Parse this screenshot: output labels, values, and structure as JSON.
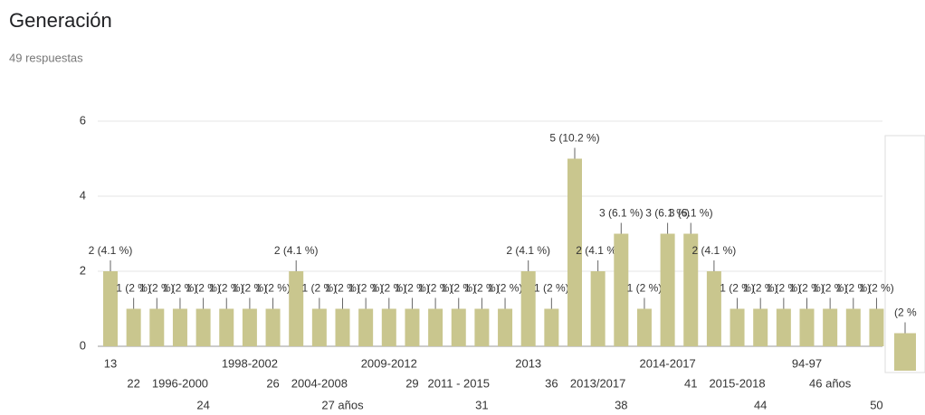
{
  "chart_data": [
    {
      "type": "bar",
      "title": "Generación",
      "subtitle": "49 respuestas",
      "categories": [
        "13",
        "22",
        null,
        "1996-2000",
        "24",
        null,
        "1998-2002",
        "26",
        null,
        "2004-2008",
        "27 años",
        null,
        "2009-2012",
        "29",
        null,
        "2011 - 2015",
        "31",
        null,
        "2013",
        "36",
        null,
        "2013/2017",
        "38",
        null,
        "2014-2017",
        "41",
        null,
        "2015-2018",
        "44",
        null,
        "94-97",
        "46 años",
        null,
        "50"
      ],
      "values": [
        2,
        1,
        1,
        1,
        1,
        1,
        1,
        1,
        2,
        1,
        1,
        1,
        1,
        1,
        1,
        1,
        1,
        1,
        2,
        1,
        5,
        2,
        3,
        1,
        3,
        3,
        2,
        1,
        1,
        1,
        1,
        1,
        1,
        1
      ],
      "value_labels": [
        "2 (4.1 %)",
        "1 (2 %)",
        "1 (2 %)",
        "1 (2 %)",
        "1 (2 %)",
        "1 (2 %)",
        "1 (2 %)",
        "1 (2 %)",
        "2 (4.1 %)",
        "1 (2 %)",
        "1 (2 %)",
        "1 (2 %)",
        "1 (2 %)",
        "1 (2 %)",
        "1 (2 %)",
        "1 (2 %)",
        "1 (2 %)",
        "1 (2 %)",
        "2 (4.1 %)",
        "1 (2 %)",
        "5 (10.2 %)",
        "2 (4.1 %)",
        "3 (6.1 %)",
        "1 (2 %)",
        "3 (6.1 %)",
        "3 (6.1 %)",
        "2 (4.1 %)",
        "1 (2 %)",
        "1 (2 %)",
        "1 (2 %)",
        "1 (2 %)",
        "1 (2 %)",
        "1 (2 %)",
        "1 (2 %)"
      ],
      "color": "#c9c68e",
      "ylim": [
        0,
        6
      ],
      "yticks": [
        0,
        2,
        4,
        6
      ],
      "grid": true
    },
    {
      "type": "bar",
      "categories": [
        null
      ],
      "values": [
        1
      ],
      "value_labels": [
        "(2 %"
      ],
      "color": "#c9c68e",
      "ylim": [
        0,
        6
      ]
    }
  ]
}
